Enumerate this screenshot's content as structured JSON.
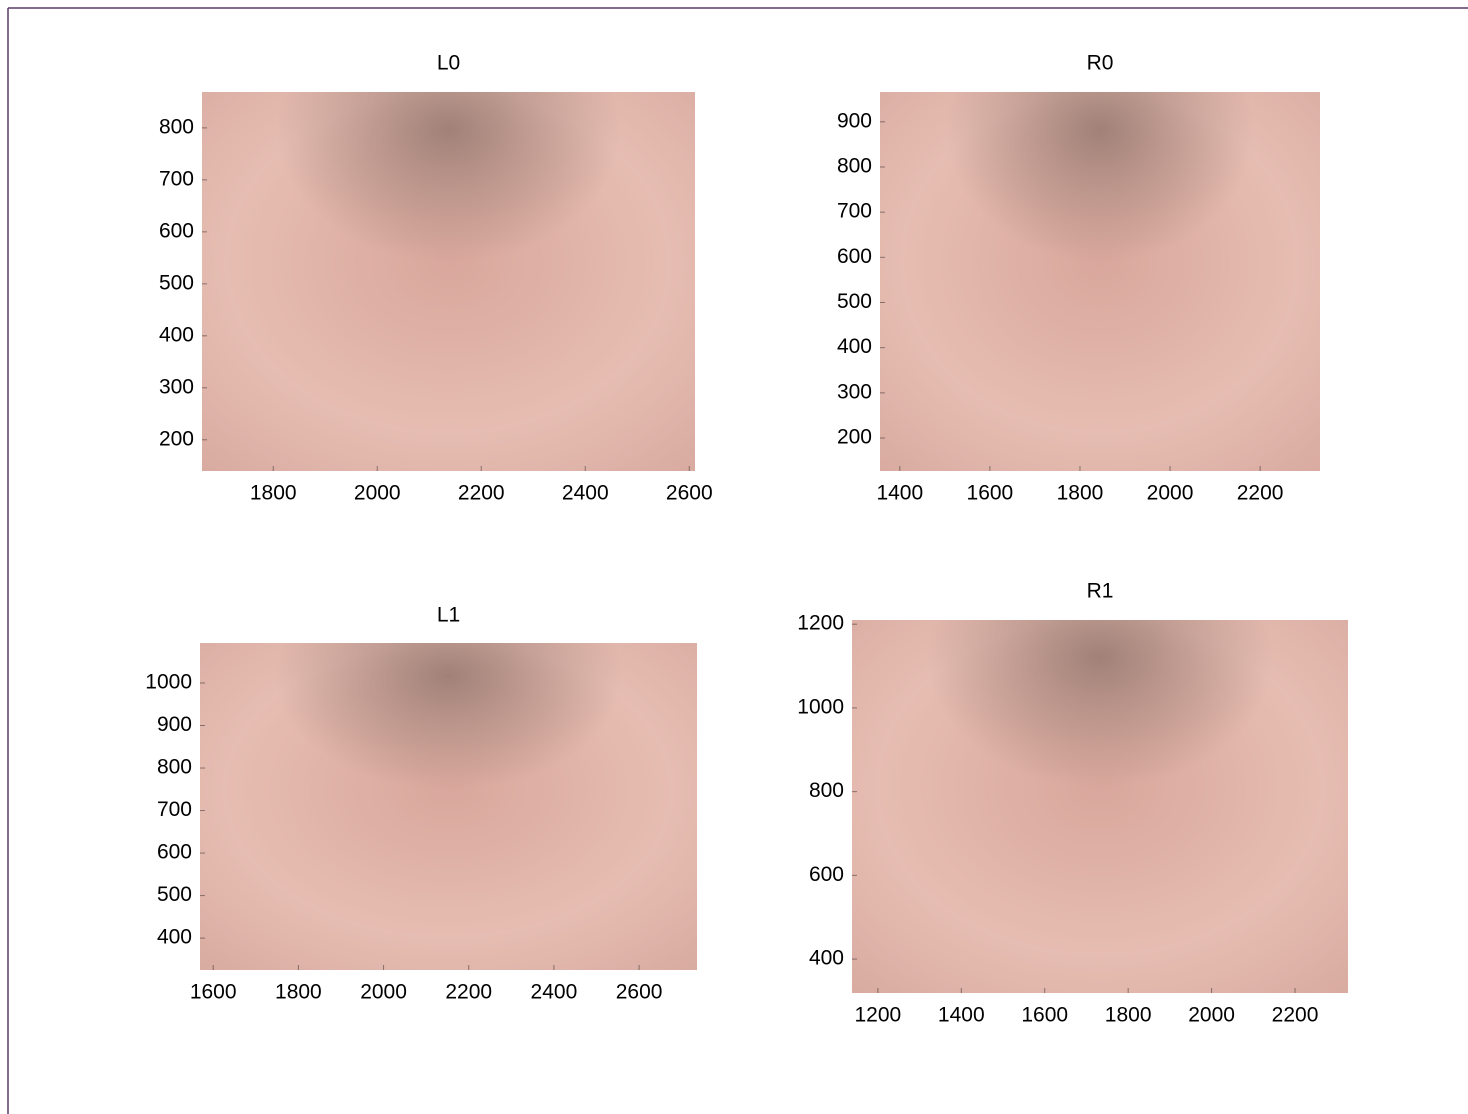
{
  "chart_data": [
    {
      "type": "image",
      "title": "L0",
      "xlim": [
        1663,
        2611
      ],
      "ylim": [
        140,
        869
      ],
      "xticks": [
        1800,
        2000,
        2200,
        2400,
        2600
      ],
      "yticks": [
        200,
        300,
        400,
        500,
        600,
        700,
        800
      ]
    },
    {
      "type": "image",
      "title": "R0",
      "xlim": [
        1356,
        2333
      ],
      "ylim": [
        127,
        966
      ],
      "xticks": [
        1400,
        1600,
        1800,
        2000,
        2200
      ],
      "yticks": [
        200,
        300,
        400,
        500,
        600,
        700,
        800,
        900
      ]
    },
    {
      "type": "image",
      "title": "L1",
      "xlim": [
        1569,
        2736
      ],
      "ylim": [
        325,
        1094
      ],
      "xticks": [
        1600,
        1800,
        2000,
        2200,
        2400,
        2600
      ],
      "yticks": [
        400,
        500,
        600,
        700,
        800,
        900,
        1000
      ]
    },
    {
      "type": "image",
      "title": "R1",
      "xlim": [
        1138,
        2327
      ],
      "ylim": [
        319,
        1210
      ],
      "xticks": [
        1200,
        1400,
        1600,
        1800,
        2000,
        2200
      ],
      "yticks": [
        400,
        600,
        800,
        1000,
        1200
      ]
    }
  ]
}
